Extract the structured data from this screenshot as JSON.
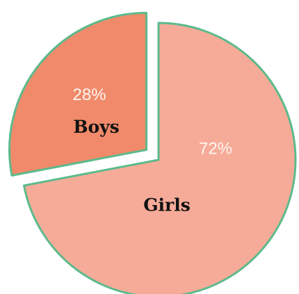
{
  "chart_data": {
    "type": "pie",
    "categories": [
      "Boys",
      "Girls"
    ],
    "values": [
      28,
      72
    ],
    "value_labels": [
      "28%",
      "72%"
    ],
    "colors": [
      "#f08a6a",
      "#f6ab98"
    ],
    "explode": [
      0.1,
      0
    ]
  }
}
